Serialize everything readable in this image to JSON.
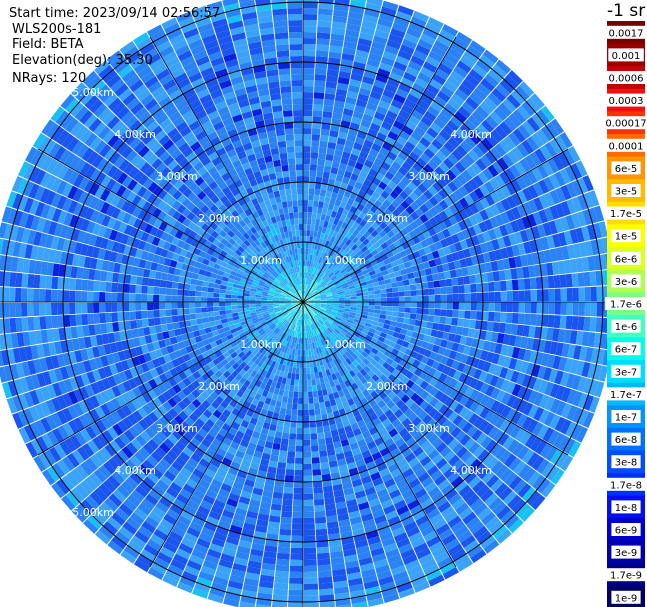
{
  "header": {
    "start_time": "Start time: 2023/09/14 02:56:57",
    "instrument": "WLS200s-181",
    "field": "Field: BETA",
    "elevation": "Elevation(deg): 35.30",
    "nrays": "NRays: 120"
  },
  "colorbar": {
    "unit_label": "-1 sr",
    "labels": [
      "0.0017",
      "0.001",
      "0.0006",
      "0.0003",
      "0.00017",
      "0.0001",
      "6e-5",
      "3e-5",
      "1.7e-5",
      "1e-5",
      "6e-6",
      "3e-6",
      "1.7e-6",
      "1e-6",
      "6e-7",
      "3e-7",
      "1.7e-7",
      "1e-7",
      "6e-8",
      "3e-8",
      "1.7e-8",
      "1e-8",
      "6e-9",
      "3e-9",
      "1.7e-9",
      "1e-9"
    ],
    "colors": [
      "#7a0000",
      "#990000",
      "#c40000",
      "#ee1111",
      "#ff3300",
      "#ff6a00",
      "#ff9500",
      "#ffba00",
      "#ffdd00",
      "#ffff00",
      "#ddff22",
      "#b0ff50",
      "#7dff80",
      "#40ffc0",
      "#00ffe8",
      "#00ddff",
      "#00b8ff",
      "#0095ff",
      "#0070ff",
      "#004eff",
      "#0030ff",
      "#0010ee",
      "#0000cc",
      "#0000a8",
      "#000088",
      "#000066"
    ]
  },
  "chart_data": {
    "type": "ppi",
    "n_rays": 120,
    "range_rings_km": [
      1,
      2,
      3,
      4,
      5
    ],
    "max_range_km": 5.1,
    "ring_labels": [
      "1.00km",
      "2.00km",
      "3.00km",
      "4.00km",
      "5.00km"
    ],
    "spoke_angles_deg": [
      0,
      30,
      60,
      90,
      120,
      150,
      180,
      210,
      240,
      270,
      300,
      330
    ],
    "value_range": [
      "1e-9",
      "0.0017"
    ],
    "dominant_value_band": [
      "3e-8",
      "3e-6"
    ]
  }
}
